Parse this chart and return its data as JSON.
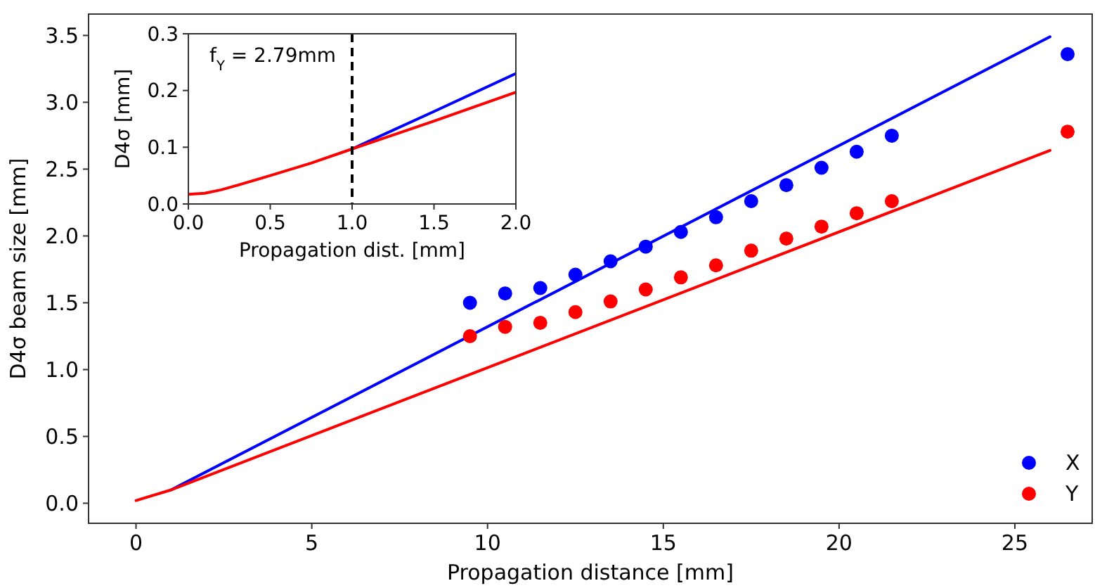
{
  "chart_data": [
    {
      "type": "scatter",
      "xlabel": "Propagation distance [mm]",
      "ylabel": "D4σ beam size [mm]",
      "xlim": [
        -1.35,
        27.2
      ],
      "ylim": [
        -0.15,
        3.66
      ],
      "xticks": [
        0,
        5,
        10,
        15,
        20,
        25
      ],
      "yticks": [
        {
          "value": 0,
          "label": "0.0"
        },
        {
          "value": 0.5,
          "label": "0.5"
        },
        {
          "value": 1,
          "label": "1.0"
        },
        {
          "value": 1.5,
          "label": "1.5"
        },
        {
          "value": 2,
          "label": "2.0"
        },
        {
          "value": 2.5,
          "label": "2.5"
        },
        {
          "value": 3,
          "label": "3.0"
        },
        {
          "value": 3.5,
          "label": "3.5"
        }
      ],
      "legend": "bottom right",
      "grid": false,
      "series": [
        {
          "type": "line",
          "color": "#0000ff",
          "marker": "none",
          "x": [
            1,
            26
          ],
          "values": [
            0.1,
            3.49
          ]
        },
        {
          "type": "line",
          "color": "#ff0000",
          "marker": "none",
          "x": [
            0,
            1,
            26
          ],
          "values": [
            0.02,
            0.1,
            2.64
          ]
        },
        {
          "name": "X",
          "color": "#0000ff",
          "marker": "circle",
          "x": [
            9.5,
            10.5,
            11.5,
            12.5,
            13.5,
            14.5,
            15.5,
            16.5,
            17.5,
            18.5,
            19.5,
            20.5,
            21.5,
            26.5
          ],
          "values": [
            1.5,
            1.57,
            1.61,
            1.71,
            1.81,
            1.92,
            2.03,
            2.14,
            2.26,
            2.38,
            2.51,
            2.63,
            2.75,
            3.36
          ]
        },
        {
          "name": "Y",
          "color": "#ff0000",
          "marker": "circle",
          "x": [
            9.5,
            10.5,
            11.5,
            12.5,
            13.5,
            14.5,
            15.5,
            16.5,
            17.5,
            18.5,
            19.5,
            20.5,
            21.5,
            26.5
          ],
          "values": [
            1.25,
            1.32,
            1.35,
            1.43,
            1.51,
            1.6,
            1.69,
            1.78,
            1.89,
            1.98,
            2.07,
            2.17,
            2.26,
            2.78
          ]
        }
      ]
    },
    {
      "type": "line",
      "xlabel": "Propagation dist. [mm]",
      "ylabel": "D4σ [mm]",
      "xlim": [
        0,
        2
      ],
      "ylim": [
        0,
        0.3
      ],
      "xticks": [
        {
          "value": 0,
          "label": "0.0"
        },
        {
          "value": 0.5,
          "label": "0.5"
        },
        {
          "value": 1,
          "label": "1.0"
        },
        {
          "value": 1.5,
          "label": "1.5"
        },
        {
          "value": 2,
          "label": "2.0"
        }
      ],
      "yticks": [
        {
          "value": 0,
          "label": "0.0"
        },
        {
          "value": 0.1,
          "label": "0.1"
        },
        {
          "value": 0.2,
          "label": "0.2"
        },
        {
          "value": 0.3,
          "label": "0.3"
        }
      ],
      "grid": false,
      "legend": false,
      "marker": "none",
      "annotations": [
        "f$_{Y}$ = 2.79mm"
      ],
      "ref_lines": [
        {
          "axis": "x",
          "value": 1,
          "color": "#000000",
          "line_style": "dashed"
        }
      ],
      "series": [
        {
          "color": "#0000ff",
          "x": [
            1,
            1.5,
            2
          ],
          "values": [
            0.097,
            0.163,
            0.23
          ]
        },
        {
          "color": "#ff0000",
          "x": [
            0,
            0.1,
            0.2,
            0.3,
            0.5,
            0.75,
            1,
            1.5,
            2
          ],
          "values": [
            0.017,
            0.019,
            0.025,
            0.033,
            0.05,
            0.072,
            0.097,
            0.146,
            0.197
          ]
        }
      ]
    }
  ]
}
